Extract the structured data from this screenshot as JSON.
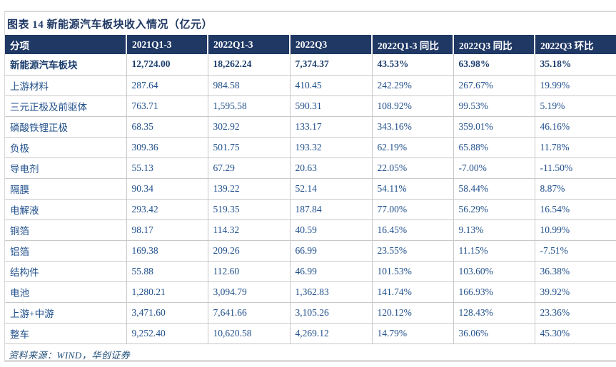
{
  "figure": {
    "title": "图表 14 新能源汽车板块收入情况（亿元）",
    "source": "资料来源：WIND，华创证券"
  },
  "colors": {
    "header_bg": "#1f3864",
    "header_text": "#ffffff",
    "title_text": "#1f3864",
    "data_text": "#20508c",
    "bold_row_text": "#1c3e6e",
    "grid_border": "#c9c9c9",
    "box_border": "#d9d9d9"
  },
  "chart_data": {
    "type": "table",
    "title": "图表 14 新能源汽车板块收入情况（亿元）",
    "columns": [
      "分项",
      "2021Q1-3",
      "2022Q1-3",
      "2022Q3",
      "2022Q1-3 同比",
      "2022Q3 同比",
      "2022Q3 环比"
    ],
    "rows": [
      {
        "bold": true,
        "cells": [
          "新能源汽车板块",
          "12,724.00",
          "18,262.24",
          "7,374.37",
          "43.53%",
          "63.98%",
          "35.18%"
        ]
      },
      {
        "bold": false,
        "cells": [
          "上游材料",
          "287.64",
          "984.58",
          "410.45",
          "242.29%",
          "267.67%",
          "19.99%"
        ]
      },
      {
        "bold": false,
        "cells": [
          "三元正极及前驱体",
          "763.71",
          "1,595.58",
          "590.31",
          "108.92%",
          "99.53%",
          "5.19%"
        ]
      },
      {
        "bold": false,
        "cells": [
          "磷酸铁锂正极",
          "68.35",
          "302.92",
          "133.17",
          "343.16%",
          "359.01%",
          "46.16%"
        ]
      },
      {
        "bold": false,
        "cells": [
          "负极",
          "309.36",
          "501.75",
          "193.32",
          "62.19%",
          "65.88%",
          "11.78%"
        ]
      },
      {
        "bold": false,
        "cells": [
          "导电剂",
          "55.13",
          "67.29",
          "20.63",
          "22.05%",
          "-7.00%",
          "-11.50%"
        ]
      },
      {
        "bold": false,
        "cells": [
          "隔膜",
          "90.34",
          "139.22",
          "52.14",
          "54.11%",
          "58.44%",
          "8.87%"
        ]
      },
      {
        "bold": false,
        "cells": [
          "电解液",
          "293.42",
          "519.35",
          "187.84",
          "77.00%",
          "56.29%",
          "16.54%"
        ]
      },
      {
        "bold": false,
        "cells": [
          "铜箔",
          "98.17",
          "114.32",
          "40.59",
          "16.45%",
          "9.13%",
          "10.99%"
        ]
      },
      {
        "bold": false,
        "cells": [
          "铝箔",
          "169.38",
          "209.26",
          "66.99",
          "23.55%",
          "11.15%",
          "-7.51%"
        ]
      },
      {
        "bold": false,
        "cells": [
          "结构件",
          "55.88",
          "112.60",
          "46.99",
          "101.53%",
          "103.60%",
          "36.38%"
        ]
      },
      {
        "bold": false,
        "cells": [
          "电池",
          "1,280.21",
          "3,094.79",
          "1,362.83",
          "141.74%",
          "166.93%",
          "39.92%"
        ]
      },
      {
        "bold": false,
        "cells": [
          "上游+中游",
          "3,471.60",
          "7,641.66",
          "3,105.26",
          "120.12%",
          "128.43%",
          "23.36%"
        ]
      },
      {
        "bold": false,
        "cells": [
          "整车",
          "9,252.40",
          "10,620.58",
          "4,269.12",
          "14.79%",
          "36.06%",
          "45.30%"
        ]
      }
    ]
  }
}
